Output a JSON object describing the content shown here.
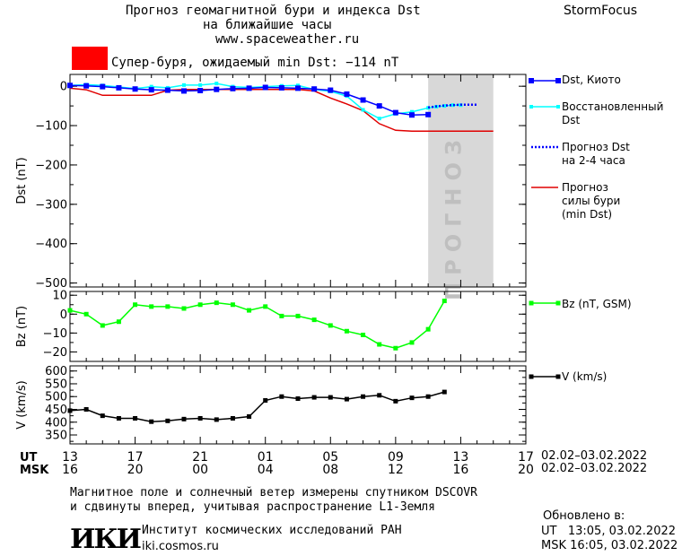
{
  "header": {
    "title_line1": "Прогноз геомагнитной бури и индекса Dst",
    "title_line2": "на ближайшие часы",
    "url": "www.spaceweather.ru",
    "brand": "StormFocus",
    "alert_color": "#ff0000",
    "alert_text": "Супер-буря, ожидаемый min Dst: −114 nT"
  },
  "colors": {
    "dst_kyoto": "#0000ff",
    "dst_restored": "#00ffff",
    "dst_forecast": "#0000ff",
    "storm_forecast": "#e00000",
    "bz": "#00ff00",
    "v": "#000000",
    "forecast_zone": "#d8d8d8"
  },
  "legend": {
    "dst_kyoto": "Dst, Киото",
    "dst_restored_1": "Восстановленный",
    "dst_restored_2": "Dst",
    "dst_forecast_1": "Прогноз Dst",
    "dst_forecast_2": "на 2-4 часа",
    "storm_1": "Прогноз",
    "storm_2": "силы бури",
    "storm_3": "(min Dst)",
    "bz": "Bz (nT, GSM)",
    "v": "V (km/s)"
  },
  "chart_data": [
    {
      "type": "line",
      "panel": "dst",
      "ylabel": "Dst (nT)",
      "ylim": [
        -510,
        30
      ],
      "yticks": [
        0,
        -100,
        -200,
        -300,
        -400,
        -500
      ],
      "ytick_labels": [
        "0",
        "−100",
        "−200",
        "−300",
        "−400",
        "−500"
      ],
      "forecast_zone_label": "ПРОГНОЗ",
      "forecast_zone_hours": [
        35.0,
        39.0
      ],
      "series": [
        {
          "name": "Dst, Киото",
          "x": [
            13.0,
            14.0,
            15.0,
            16.0,
            17.0,
            18.0,
            19.0,
            20.0,
            21.0,
            22.0,
            23.0,
            24.0,
            25.0,
            26.0,
            27.0,
            28.0,
            29.0,
            30.0,
            31.0,
            32.0,
            33.0,
            34.0,
            35.0
          ],
          "values": [
            2,
            1,
            -1,
            -4,
            -7,
            -9,
            -10,
            -12,
            -11,
            -8,
            -6,
            -5,
            -3,
            -4,
            -5,
            -7,
            -10,
            -20,
            -35,
            -50,
            -67,
            -73,
            -72
          ]
        },
        {
          "name": "Восстановленный Dst",
          "x": [
            13.0,
            14.0,
            15.0,
            16.0,
            17.0,
            18.0,
            19.0,
            20.0,
            21.0,
            22.0,
            23.0,
            24.0,
            25.0,
            26.0,
            27.0,
            28.0,
            29.0,
            30.0,
            31.0,
            32.0,
            33.0,
            34.0,
            35.0,
            35.5,
            36.0,
            36.5,
            37.0
          ],
          "values": [
            2,
            4,
            2,
            -2,
            -6,
            -1,
            -4,
            3,
            3,
            7,
            -1,
            -3,
            -1,
            1,
            2,
            -8,
            -13,
            -25,
            -60,
            -82,
            -70,
            -65,
            -55,
            -52,
            -50,
            -48,
            -48
          ]
        },
        {
          "name": "Прогноз Dst на 2-4 часа",
          "x": [
            35.0,
            35.5,
            36.0,
            36.5,
            37.0,
            38.0
          ],
          "values": [
            -54,
            -51,
            -49,
            -48,
            -47,
            -47
          ]
        },
        {
          "name": "Прогноз силы бури (min Dst)",
          "x": [
            13.0,
            14.0,
            15.0,
            16.0,
            18.0,
            19.0,
            20.0,
            21.0,
            22.0,
            23.0,
            24.0,
            25.0,
            26.0,
            27.0,
            28.0,
            29.0,
            30.0,
            31.0,
            32.0,
            33.0,
            34.0,
            35.0,
            37.0,
            39.0
          ],
          "values": [
            -5,
            -9,
            -23,
            -23,
            -23,
            -10,
            -8,
            -8,
            -8,
            -8,
            -8,
            -8,
            -8,
            -8,
            -12,
            -30,
            -45,
            -62,
            -95,
            -112,
            -114,
            -114,
            -114,
            -114
          ]
        }
      ]
    },
    {
      "type": "line",
      "panel": "bz",
      "ylabel": "Bz (nT)",
      "ylim": [
        -25,
        12
      ],
      "yticks": [
        10,
        0,
        -10,
        -20
      ],
      "ytick_labels": [
        "10",
        "0",
        "−10",
        "−20"
      ],
      "series": [
        {
          "name": "Bz (nT, GSM)",
          "x": [
            13.0,
            14.0,
            15.0,
            16.0,
            17.0,
            18.0,
            19.0,
            20.0,
            21.0,
            22.0,
            23.0,
            24.0,
            25.0,
            26.0,
            27.0,
            28.0,
            29.0,
            30.0,
            31.0,
            32.0,
            33.0,
            34.0,
            35.0,
            36.0
          ],
          "values": [
            2,
            0,
            -6,
            -4,
            5,
            4,
            4,
            3,
            5,
            6,
            5,
            2,
            4,
            -1,
            -1,
            -3,
            -6,
            -9,
            -11,
            -16,
            -18,
            -15,
            -8,
            7
          ]
        }
      ]
    },
    {
      "type": "line",
      "panel": "v",
      "ylabel": "V (km/s)",
      "ylim": [
        315,
        620
      ],
      "yticks": [
        600,
        550,
        500,
        450,
        400,
        350
      ],
      "ytick_labels": [
        "600",
        "550",
        "500",
        "450",
        "400",
        "350"
      ],
      "series": [
        {
          "name": "V (km/s)",
          "x": [
            13.0,
            14.0,
            15.0,
            16.0,
            17.0,
            18.0,
            19.0,
            20.0,
            21.0,
            22.0,
            23.0,
            24.0,
            25.0,
            26.0,
            27.0,
            28.0,
            29.0,
            30.0,
            31.0,
            32.0,
            33.0,
            34.0,
            35.0,
            36.0
          ],
          "values": [
            445,
            450,
            425,
            415,
            415,
            402,
            405,
            412,
            415,
            410,
            415,
            422,
            485,
            500,
            492,
            497,
            497,
            490,
            500,
            505,
            482,
            495,
            500,
            518
          ]
        }
      ]
    }
  ],
  "xaxis": {
    "hour_min": 13,
    "hour_max": 41,
    "ut_label": "UT",
    "msk_label": "MSK",
    "ut_ticks": [
      {
        "h": 13,
        "label": "13"
      },
      {
        "h": 17,
        "label": "17"
      },
      {
        "h": 21,
        "label": "21"
      },
      {
        "h": 25,
        "label": "01"
      },
      {
        "h": 29,
        "label": "05"
      },
      {
        "h": 33,
        "label": "09"
      },
      {
        "h": 37,
        "label": "13"
      },
      {
        "h": 41,
        "label": "17"
      }
    ],
    "msk_ticks": [
      {
        "h": 13,
        "label": "16"
      },
      {
        "h": 17,
        "label": "20"
      },
      {
        "h": 21,
        "label": "00"
      },
      {
        "h": 25,
        "label": "04"
      },
      {
        "h": 29,
        "label": "08"
      },
      {
        "h": 33,
        "label": "12"
      },
      {
        "h": 37,
        "label": "16"
      },
      {
        "h": 41,
        "label": "20"
      }
    ],
    "date_range_ut": "02.02–03.02.2022",
    "date_range_msk": "02.02–03.02.2022"
  },
  "footer": {
    "note_line1": "Магнитное поле и солнечный ветер измерены спутником DSCOVR",
    "note_line2": "и сдвинуты вперед, учитывая распространение L1-Земля",
    "logo": "ИКИ",
    "institute": "Институт космических исследований РАН",
    "institute_url": "iki.cosmos.ru",
    "updated_label": "Обновлено в:",
    "updated_ut": "UT   13:05, 03.02.2022",
    "updated_msk": "MSK 16:05, 03.02.2022"
  }
}
